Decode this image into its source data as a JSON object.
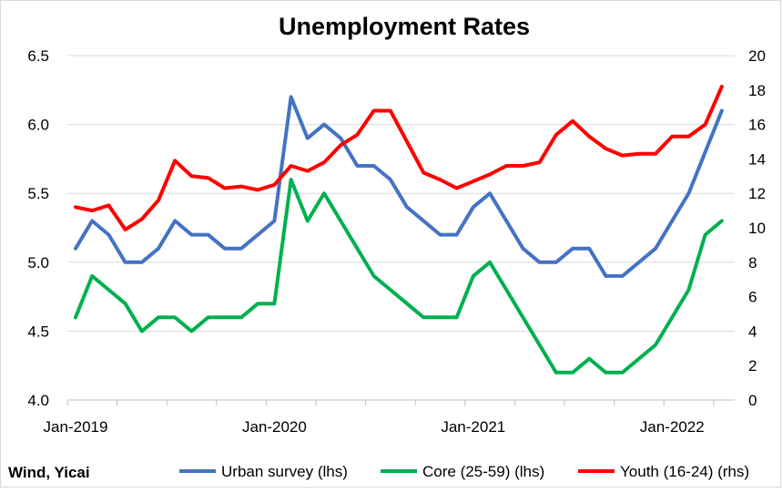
{
  "chart_data": {
    "type": "line",
    "title": "Unemployment Rates",
    "source": "Wind, Yicai",
    "x_tick_labels": [
      "Jan-2019",
      "Jan-2020",
      "Jan-2021",
      "Jan-2022"
    ],
    "left_axis": {
      "range": [
        4.0,
        6.5
      ],
      "ticks": [
        "4.0",
        "4.5",
        "5.0",
        "5.5",
        "6.0",
        "6.5"
      ]
    },
    "right_axis": {
      "range": [
        0,
        20
      ],
      "ticks": [
        "0",
        "2",
        "4",
        "6",
        "8",
        "10",
        "12",
        "14",
        "16",
        "18",
        "20"
      ]
    },
    "x": [
      "2019-01",
      "2019-02",
      "2019-03",
      "2019-04",
      "2019-05",
      "2019-06",
      "2019-07",
      "2019-08",
      "2019-09",
      "2019-10",
      "2019-11",
      "2019-12",
      "2020-01",
      "2020-02",
      "2020-03",
      "2020-04",
      "2020-05",
      "2020-06",
      "2020-07",
      "2020-08",
      "2020-09",
      "2020-10",
      "2020-11",
      "2020-12",
      "2021-01",
      "2021-02",
      "2021-03",
      "2021-04",
      "2021-05",
      "2021-06",
      "2021-07",
      "2021-08",
      "2021-09",
      "2021-10",
      "2021-11",
      "2021-12",
      "2022-01",
      "2022-02",
      "2022-03",
      "2022-04"
    ],
    "series": [
      {
        "name": "Urban survey (lhs)",
        "axis": "left",
        "color": "#4472C4",
        "values": [
          5.1,
          5.3,
          5.2,
          5.0,
          5.0,
          5.1,
          5.3,
          5.2,
          5.2,
          5.1,
          5.1,
          5.2,
          5.3,
          6.2,
          5.9,
          6.0,
          5.9,
          5.7,
          5.7,
          5.6,
          5.4,
          5.3,
          5.2,
          5.2,
          5.4,
          5.5,
          5.3,
          5.1,
          5.0,
          5.0,
          5.1,
          5.1,
          4.9,
          4.9,
          5.0,
          5.1,
          5.3,
          5.5,
          5.8,
          6.1
        ]
      },
      {
        "name": "Core (25-59) (lhs)",
        "axis": "left",
        "color": "#00B050",
        "values": [
          4.6,
          4.9,
          4.8,
          4.7,
          4.5,
          4.6,
          4.6,
          4.5,
          4.6,
          4.6,
          4.6,
          4.7,
          4.7,
          5.6,
          5.3,
          5.5,
          5.3,
          5.1,
          4.9,
          4.8,
          4.7,
          4.6,
          4.6,
          4.6,
          4.9,
          5.0,
          4.8,
          4.6,
          4.4,
          4.2,
          4.2,
          4.3,
          4.2,
          4.2,
          4.3,
          4.4,
          4.6,
          4.8,
          5.2,
          5.3
        ]
      },
      {
        "name": "Youth (16-24) (rhs)",
        "axis": "right",
        "color": "#FF0000",
        "values": [
          11.2,
          11.0,
          11.3,
          9.9,
          10.5,
          11.6,
          13.9,
          13.0,
          12.9,
          12.3,
          12.4,
          12.2,
          12.5,
          13.6,
          13.3,
          13.8,
          14.8,
          15.4,
          16.8,
          16.8,
          15.0,
          13.2,
          12.8,
          12.3,
          12.7,
          13.1,
          13.6,
          13.6,
          13.8,
          15.4,
          16.2,
          15.3,
          14.6,
          14.2,
          14.3,
          14.3,
          15.3,
          15.3,
          16.0,
          18.2
        ]
      }
    ],
    "grid": "horizontal",
    "legend_position": "bottom"
  }
}
